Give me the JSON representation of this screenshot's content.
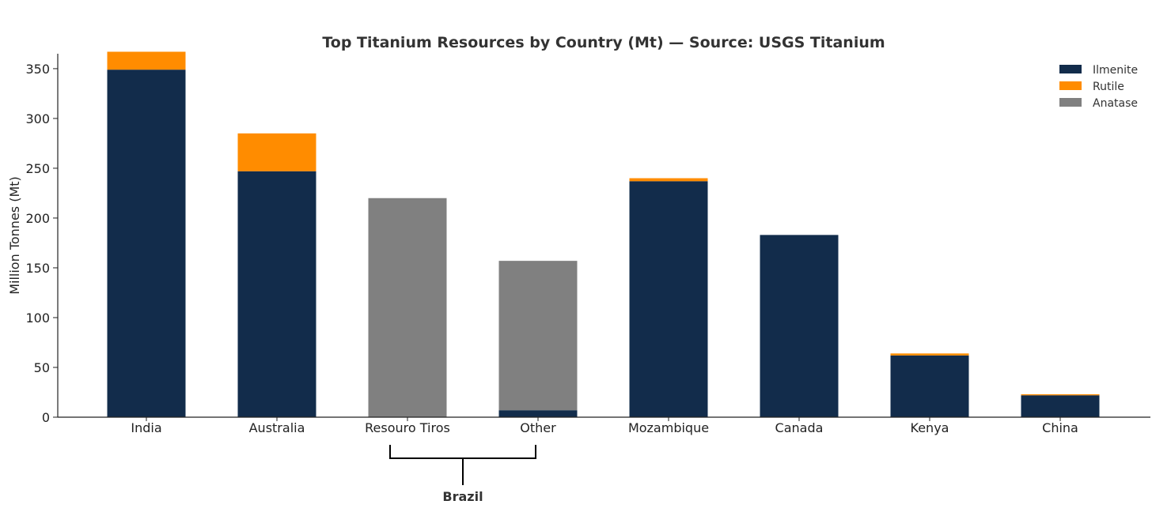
{
  "chart_data": {
    "type": "bar",
    "stacked": true,
    "title": "Top Titanium Resources by Country (Mt) — Source: USGS Titanium",
    "xlabel": "",
    "ylabel": "Million Tonnes (Mt)",
    "ylim": [
      0,
      365
    ],
    "yticks": [
      0,
      50,
      100,
      150,
      200,
      250,
      300,
      350
    ],
    "grid": false,
    "legend_placement": "top-right",
    "categories": [
      "India",
      "Australia",
      "Resouro Tiros",
      "Other",
      "Mozambique",
      "Canada",
      "Kenya",
      "China"
    ],
    "series": [
      {
        "name": "Ilmenite",
        "color": "#122c4b",
        "values": [
          349,
          247,
          0,
          7,
          237,
          183,
          62,
          22
        ]
      },
      {
        "name": "Rutile",
        "color": "#ff8c00",
        "values": [
          18,
          38,
          0,
          0,
          3,
          0,
          2,
          1
        ]
      },
      {
        "name": "Anatase",
        "color": "#808080",
        "values": [
          0,
          0,
          220,
          150,
          0,
          0,
          0,
          0
        ]
      }
    ],
    "annotations": [
      {
        "text": "Brazil",
        "type": "bracket",
        "spans": [
          "Resouro Tiros",
          "Other"
        ]
      }
    ]
  }
}
